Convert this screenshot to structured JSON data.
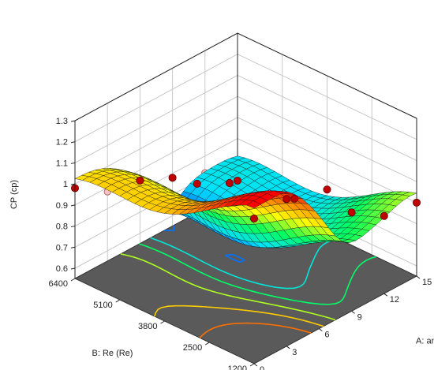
{
  "chart_data": {
    "type": "surface3d",
    "title": "",
    "z_label": "CP (cp)",
    "x_label": "A: angel (°)",
    "y_label": "B: Re (Re)",
    "z_ticks": [
      "0.6",
      "0.7",
      "0.8",
      "0.9",
      "1",
      "1.1",
      "1.2",
      "1.3"
    ],
    "x_ticks": [
      "0",
      "3",
      "6",
      "9",
      "12",
      "15"
    ],
    "y_ticks": [
      "1200",
      "2500",
      "3800",
      "5100",
      "6400"
    ],
    "z_range": [
      0.55,
      1.3
    ],
    "x_range": [
      0,
      15
    ],
    "y_range": [
      1200,
      6400
    ],
    "floor_color": "#5a5a5a",
    "colormap": [
      "#0000ff",
      "#00e0ff",
      "#00ff60",
      "#ffff00",
      "#ff8000",
      "#ff0000"
    ],
    "design_points_above": [
      {
        "angle": 0,
        "re": 6400,
        "cp": 0.98
      },
      {
        "angle": 0,
        "re": 1200,
        "cp": 1.24
      },
      {
        "angle": 3,
        "re": 1200,
        "cp": 1.25
      },
      {
        "angle": 3,
        "re": 3800,
        "cp": 1.12
      },
      {
        "angle": 6,
        "re": 3800,
        "cp": 1.04
      },
      {
        "angle": 6,
        "re": 6400,
        "cp": 0.85
      },
      {
        "angle": 9,
        "re": 1200,
        "cp": 1.02
      },
      {
        "angle": 9,
        "re": 6400,
        "cp": 0.78
      },
      {
        "angle": 12,
        "re": 1200,
        "cp": 0.92
      },
      {
        "angle": 12,
        "re": 3800,
        "cp": 0.8
      },
      {
        "angle": 15,
        "re": 1200,
        "cp": 0.9
      },
      {
        "angle": 15,
        "re": 3800,
        "cp": 0.76
      },
      {
        "angle": 15,
        "re": 6400,
        "cp": 0.6
      }
    ],
    "design_points_below": [
      {
        "angle": 3,
        "re": 6400,
        "cp": 0.88
      },
      {
        "angle": 6,
        "re": 1200,
        "cp": 1.08
      },
      {
        "angle": 9,
        "re": 3800,
        "cp": 0.72
      },
      {
        "angle": 12,
        "re": 6400,
        "cp": 0.72
      },
      {
        "angle": 15,
        "re": 2500,
        "cp": 0.74
      }
    ]
  }
}
